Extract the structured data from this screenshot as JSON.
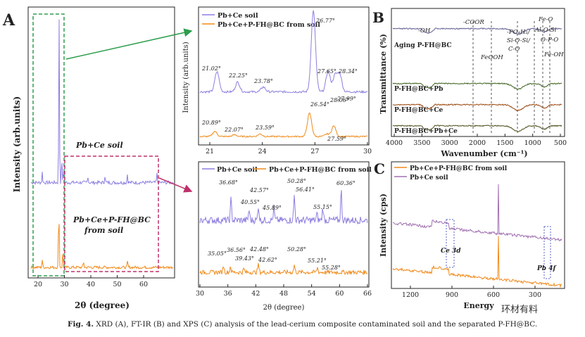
{
  "caption": {
    "label": "Fig. 4.",
    "text": "XRD (A), FT-IR (B) and XPS (C) analysis of the lead-cerium composite contaminated soil and the separated P-FH@BC."
  },
  "watermark": "环材有料",
  "colors": {
    "purple": "#8b7fe0",
    "orange": "#f08a1a",
    "green": "#2e9e4e",
    "magenta": "#c0306a",
    "dash": "#555"
  },
  "chart_data": [
    {
      "id": "A",
      "type": "line",
      "panel_label": "A",
      "xlabel": "2θ (degree)",
      "ylabel": "Intensity (arb.units)",
      "xticks": [
        "20",
        "30",
        "40",
        "50",
        "60"
      ],
      "xlim": [
        17,
        66
      ],
      "series": [
        {
          "name": "Pb+Ce soil",
          "color": "#8b7fe0",
          "peaks": [
            [
              20.9,
              0.06
            ],
            [
              26.7,
              0.95
            ],
            [
              27.6,
              0.14
            ],
            [
              28.3,
              0.1
            ],
            [
              36.6,
              0.04
            ],
            [
              42.5,
              0.04
            ],
            [
              50.2,
              0.05
            ],
            [
              60.4,
              0.05
            ]
          ]
        },
        {
          "name": "Pb+Ce+P-FH@BC from soil",
          "color": "#f08a1a",
          "peaks": [
            [
              20.9,
              0.05
            ],
            [
              26.6,
              0.4
            ],
            [
              28.0,
              0.1
            ],
            [
              35.1,
              0.04
            ],
            [
              50.3,
              0.04
            ]
          ]
        }
      ],
      "annotations": [
        "Pb+Ce soil",
        "Pb+Ce+P-FH@BC",
        "from soil"
      ]
    },
    {
      "id": "A-inset-1",
      "type": "line",
      "xlabel": "",
      "ylabel": "Intensity (arb.units)",
      "xticks": [
        "21",
        "24",
        "27",
        "30"
      ],
      "xlim": [
        20,
        30
      ],
      "legend": [
        "Pb+Ce soil",
        "Pb+Ce+P-FH@BC from soil"
      ],
      "series": [
        {
          "name": "Pb+Ce soil",
          "peaks": [
            21.02,
            22.25,
            23.78,
            26.77,
            27.65,
            28.06,
            28.34
          ]
        },
        {
          "name": "Pb+Ce+P-FH@BC from soil",
          "peaks": [
            20.89,
            22.07,
            23.59,
            26.54,
            27.59,
            27.99
          ]
        }
      ],
      "peak_labels": [
        "21.02°",
        "22.25°",
        "23.78°",
        "26.77°",
        "27.65°",
        "28.34°",
        "28.06°",
        "20.89°",
        "22.07°",
        "23.59°",
        "26.54°",
        "27.99°",
        "27.59°"
      ]
    },
    {
      "id": "A-inset-2",
      "type": "line",
      "xlabel": "2θ (degree)",
      "xticks": [
        "30",
        "36",
        "42",
        "48",
        "54",
        "60",
        "66"
      ],
      "xlim": [
        30,
        66
      ],
      "legend": [
        "Pb+Ce soil",
        "Pb+Ce+P-FH@BC from soil"
      ],
      "series": [
        {
          "name": "Pb+Ce soil",
          "peaks": [
            36.68,
            40.55,
            42.57,
            45.89,
            50.28,
            55.15,
            56.41,
            60.36
          ]
        },
        {
          "name": "Pb+Ce+P-FH@BC from soil",
          "peaks": [
            35.05,
            36.56,
            39.43,
            42.48,
            42.62,
            50.28,
            55.21,
            55.28
          ]
        }
      ],
      "peak_labels": [
        "36.68°",
        "42.57°",
        "50.28°",
        "60.36°",
        "40.55°",
        "45.89°",
        "56.41°",
        "55.15°",
        "35.05°",
        "36.56°",
        "42.48°",
        "39.43°",
        "42.62°",
        "50.28°",
        "55.21°",
        "55.28°"
      ]
    },
    {
      "id": "B",
      "type": "line",
      "panel_label": "B",
      "xlabel": "Wavenumber (cm⁻¹)",
      "ylabel": "Transmittance (%)",
      "xticks": [
        "4000",
        "3500",
        "3000",
        "2000",
        "1500",
        "1000",
        "500"
      ],
      "series": [
        "Aging P-FH@BC",
        "P-FH@BC+Pb",
        "P-FH@BC+Ce",
        "P-FH@BC+Pb+Ce"
      ],
      "bands": [
        "-OH",
        "-COOR",
        "FeOOH",
        "-PO₄H₂/",
        "Si-O-Si/",
        "C-O",
        "Fe-O",
        "Al-O-Si",
        "O-P-O",
        "Fe-OH"
      ]
    },
    {
      "id": "C",
      "type": "line",
      "panel_label": "C",
      "xlabel": "Energy",
      "ylabel": "Intensity (cps)",
      "xticks": [
        "1200",
        "900",
        "600",
        "300"
      ],
      "legend": [
        "Pb+Ce+P-FH@BC from soil",
        "Pb+Ce soil"
      ],
      "annotations": [
        "Ce 3d",
        "Pb 4f"
      ]
    }
  ]
}
